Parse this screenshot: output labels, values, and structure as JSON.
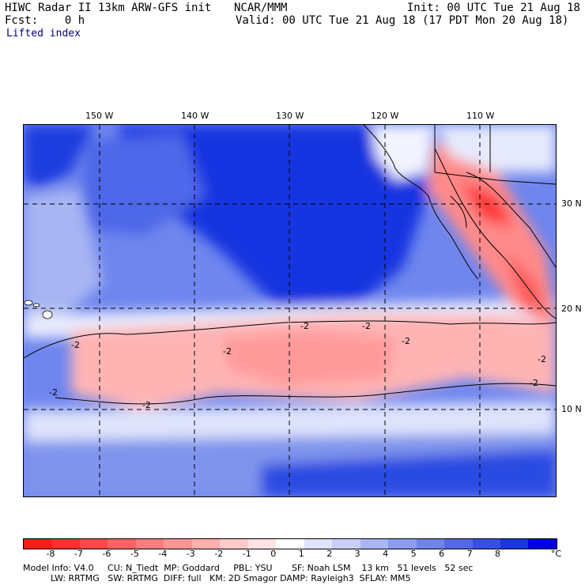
{
  "header": {
    "title": "HIWC Radar II 13km ARW-GFS init",
    "source": "NCAR/MMM",
    "init": "Init: 00 UTC Tue 21 Aug 18",
    "fcst": "Fcst:    0 h",
    "valid": "Valid: 00 UTC Tue 21 Aug 18 (17 PDT Mon 20 Aug 18)",
    "field": "Lifted index"
  },
  "map": {
    "lon_labels": [
      "150 W",
      "140 W",
      "130 W",
      "120 W",
      "110 W"
    ],
    "lat_labels": [
      "30 N",
      "20 N",
      "10 N"
    ],
    "contour_labels": [
      "-2",
      "-2",
      "-2",
      "-2",
      "-2",
      "-2",
      "-2",
      "-2",
      "-2"
    ]
  },
  "colorbar": {
    "ticks": [
      "-8",
      "-7",
      "-6",
      "-5",
      "-4",
      "-3",
      "-2",
      "-1",
      "0",
      "1",
      "2",
      "3",
      "4",
      "5",
      "6",
      "7",
      "8"
    ],
    "unit": "°C",
    "colors": [
      "#ff1a1a",
      "#ff2e2e",
      "#ff4848",
      "#ff6262",
      "#ff7c7c",
      "#ff9696",
      "#ffb0b0",
      "#ffcaca",
      "#ffe2e2",
      "#ffffff",
      "#e0e4ff",
      "#c8cff8",
      "#aab6f4",
      "#8d9cef",
      "#7083ea",
      "#5369e6",
      "#3550e2",
      "#1838dd",
      "#0000e0"
    ]
  },
  "footer": {
    "line1": "Model Info: V4.0     CU: N_Tiedt  MP: Goddard     PBL: YSU       SF: Noah LSM    13 km   51 levels   52 sec",
    "line2": "          LW: RRTMG   SW: RRTMG  DIFF: full   KM: 2D Smagor DAMP: Rayleigh3  SFLAY: MM5"
  }
}
